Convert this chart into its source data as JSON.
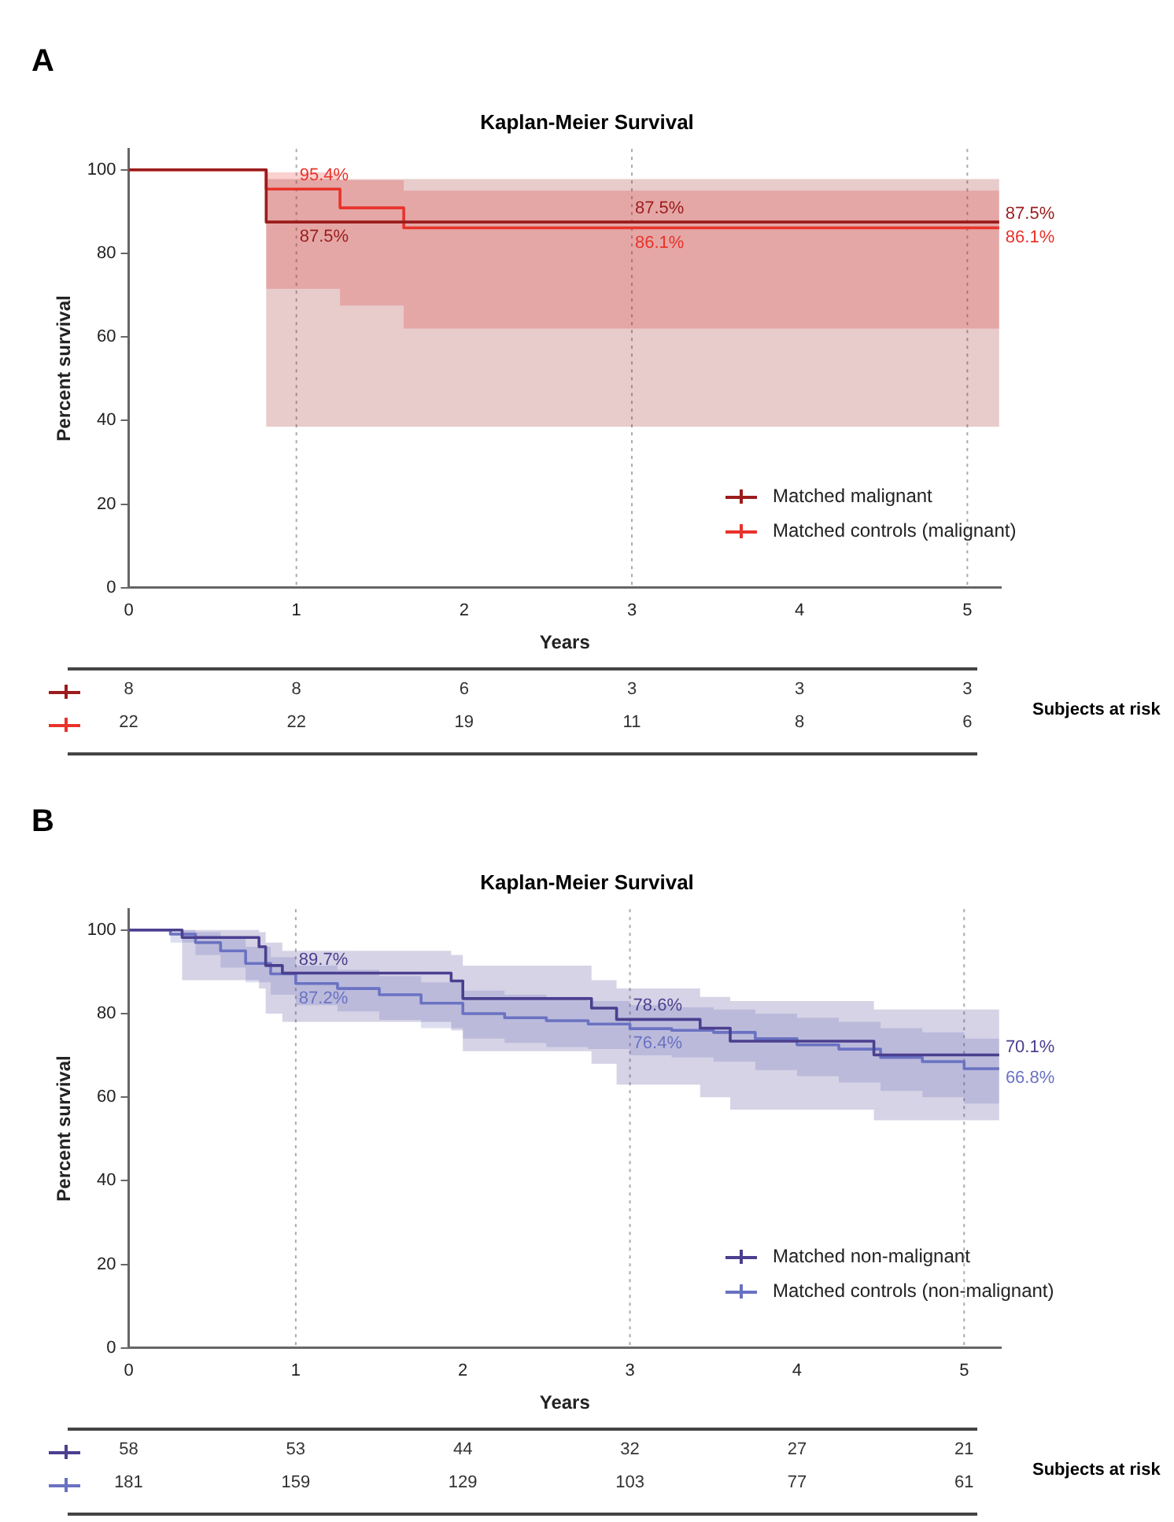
{
  "chart_data": [
    {
      "type": "step",
      "title": "Kaplan-Meier  Survival",
      "xlabel": "Years",
      "ylabel": "Percent survival",
      "xlim": [
        0,
        5.2
      ],
      "xticks": [
        0,
        1,
        2,
        3,
        4,
        5
      ],
      "ylim": [
        0,
        105
      ],
      "yticks": [
        0,
        20,
        40,
        60,
        80,
        100
      ],
      "grid": false,
      "legend": "bottom right",
      "line_style": "solid",
      "series": [
        {
          "name": "Matched malignant",
          "color": "#9b1c1c",
          "x": [
            0,
            0.82,
            5.19
          ],
          "values": [
            100,
            87.5,
            87.5
          ],
          "lower": [
            100,
            38.5,
            38.5
          ],
          "upper": [
            100,
            97.8,
            97.8
          ]
        },
        {
          "name": "Matched controls (malignant)",
          "color": "#e8332b",
          "x": [
            0,
            0.82,
            1.26,
            1.64,
            5.19
          ],
          "values": [
            100,
            95.4,
            90.9,
            86.1,
            86.1
          ],
          "lower": [
            100,
            71.5,
            67.5,
            62,
            62
          ],
          "upper": [
            100,
            99.4,
            97.5,
            95,
            95
          ]
        }
      ],
      "ref_lines": [
        {
          "axis": "x",
          "value": 1,
          "color": "#aaaaaa",
          "line_style": "dotted"
        },
        {
          "axis": "x",
          "value": 3,
          "color": "#aaaaaa",
          "line_style": "dotted"
        },
        {
          "axis": "x",
          "value": 5,
          "color": "#aaaaaa",
          "line_style": "dotted"
        }
      ],
      "annotations": [
        "A",
        "Subjects at risk",
        "8",
        "8",
        "6",
        "3",
        "3",
        "3",
        "22",
        "22",
        "19",
        "11",
        "8",
        "6",
        {
          "text": "95.4%",
          "x": 1,
          "y": 95.4
        },
        {
          "text": "87.5%",
          "x": 1,
          "y": 87.5
        },
        {
          "text": "87.5%",
          "x": 3,
          "y": 87.5
        },
        {
          "text": "86.1%",
          "x": 3,
          "y": 86.1
        },
        {
          "text": "87.5%",
          "x": 5.19,
          "y": 87.5
        },
        {
          "text": "86.1%",
          "x": 5.19,
          "y": 86.1
        }
      ]
    },
    {
      "type": "step",
      "title": "Kaplan-Meier  Survival",
      "xlabel": "Years",
      "ylabel": "Percent survival",
      "xlim": [
        0,
        5.22
      ],
      "xticks": [
        0,
        1,
        2,
        3,
        4,
        5
      ],
      "ylim": [
        0,
        105
      ],
      "yticks": [
        0,
        20,
        40,
        60,
        80,
        100
      ],
      "grid": false,
      "legend": "bottom right",
      "line_style": "solid",
      "series": [
        {
          "name": "Matched non-malignant",
          "color": "#4b3f8f",
          "x": [
            0,
            0.32,
            0.78,
            0.82,
            0.92,
            1.93,
            2.0,
            2.77,
            2.92,
            3.42,
            3.6,
            4.46,
            5.21
          ],
          "values": [
            100,
            98.2,
            96,
            91.5,
            89.7,
            87.8,
            83.6,
            81.3,
            78.6,
            76.5,
            73.4,
            70.1,
            70.1
          ],
          "lower": [
            100,
            88,
            86,
            80,
            78,
            76,
            71,
            68,
            63,
            60,
            57,
            54.5,
            54.5
          ],
          "upper": [
            100,
            100,
            99.5,
            97,
            95,
            94,
            91.5,
            88,
            86,
            84,
            83,
            81,
            81
          ]
        },
        {
          "name": "Matched controls (non-malignant)",
          "color": "#6a72c2",
          "x": [
            0,
            0.25,
            0.4,
            0.55,
            0.7,
            0.85,
            1.0,
            1.25,
            1.5,
            1.75,
            2.0,
            2.25,
            2.5,
            2.75,
            3.0,
            3.25,
            3.5,
            3.75,
            4.0,
            4.25,
            4.5,
            4.75,
            5.0,
            5.21
          ],
          "values": [
            100,
            99,
            97,
            95,
            92,
            89.5,
            87.2,
            86,
            84.5,
            82.5,
            80,
            79,
            78.3,
            77.5,
            76.4,
            76,
            75.5,
            74,
            72.5,
            71.5,
            69.5,
            68.5,
            66.8,
            66.8
          ],
          "lower": [
            100,
            97,
            94,
            91,
            87.5,
            84.5,
            82,
            80.5,
            78.5,
            76.5,
            74,
            73,
            72,
            71.5,
            70,
            69.5,
            68.5,
            66.5,
            65,
            63.5,
            61.5,
            60,
            58.5,
            58.5
          ],
          "upper": [
            100,
            100,
            99.5,
            98,
            96,
            93.5,
            91.5,
            90.5,
            89,
            87.5,
            85.5,
            84.5,
            84,
            83,
            82,
            81.5,
            81,
            80,
            79,
            78,
            76.5,
            75.5,
            74,
            74
          ]
        }
      ],
      "ref_lines": [
        {
          "axis": "x",
          "value": 1,
          "color": "#aaaaaa",
          "line_style": "dotted"
        },
        {
          "axis": "x",
          "value": 3,
          "color": "#aaaaaa",
          "line_style": "dotted"
        },
        {
          "axis": "x",
          "value": 5,
          "color": "#aaaaaa",
          "line_style": "dotted"
        }
      ],
      "annotations": [
        "B",
        "Subjects at risk",
        "58",
        "53",
        "44",
        "32",
        "27",
        "21",
        "181",
        "159",
        "129",
        "103",
        "77",
        "61",
        {
          "text": "89.7%",
          "x": 1,
          "y": 89.7
        },
        {
          "text": "87.2%",
          "x": 1,
          "y": 87.2
        },
        {
          "text": "78.6%",
          "x": 3,
          "y": 78.6
        },
        {
          "text": "76.4%",
          "x": 3,
          "y": 76.4
        },
        {
          "text": "70.1%",
          "x": 5.21,
          "y": 70.1
        },
        {
          "text": "66.8%",
          "x": 5.21,
          "y": 66.8
        }
      ]
    }
  ]
}
